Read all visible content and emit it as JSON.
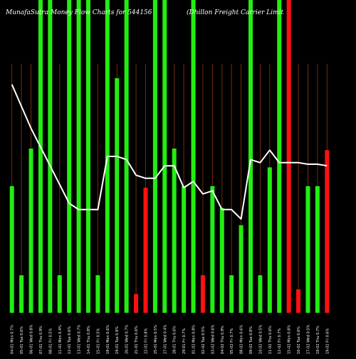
{
  "header": {
    "left_title": "MunafaSutra  Money Flow  Charts for 544156",
    "right_title": "(Dhillon  Freight Carrier Limit"
  },
  "chart_data": {
    "type": "bar",
    "title": "MunafaSutra  Money Flow  Charts for 544156",
    "subtitle": "(Dhillon  Freight Carrier Limit",
    "xlabel": "",
    "ylabel": "",
    "grid": true,
    "legend": "none",
    "colors": {
      "up": "#22ee11",
      "down": "#ff1111",
      "line": "#ffffff",
      "grid": "#7a2a10",
      "background": "#000000",
      "text": "#ffffff"
    },
    "ylim": [
      0,
      100
    ],
    "categories": [
      "04-01 Mon 0.7%",
      "05-01 Tue 0.6%",
      "06-01 Wed 0.8%",
      "07-01 Thu 0.9%",
      "08-01 Fri 0.5%",
      "11-01 Mon 0.4%",
      "12-01 Tue 0.6%",
      "13-01 Wed 0.7%",
      "14-01 Thu 0.8%",
      "15-01 Fri 0.5%",
      "18-01 Mon 0.6%",
      "19-01 Tue 0.9%",
      "20-01 Wed 0.7%",
      "21-01 Thu 0.6%",
      "22-01 Fri 0.8%",
      "25-01 Mon 0.5%",
      "27-01 Wed 0.4%",
      "28-01 Thu 0.6%",
      "29-01 Fri 0.7%",
      "01-02 Mon 0.8%",
      "02-02 Tue 0.5%",
      "03-02 Wed 0.6%",
      "04-02 Thu 0.9%",
      "05-02 Fri 0.7%",
      "08-02 Mon 0.6%",
      "09-02 Tue 0.8%",
      "10-02 Wed 0.5%",
      "11-02 Thu 0.6%",
      "12-02 Fri 0.7%",
      "15-02 Mon 0.8%",
      "16-02 Tue 0.6%",
      "17-02 Wed 0.5%",
      "18-02 Thu 0.7%",
      "19-02 Fri 0.6%"
    ],
    "series": [
      {
        "values": [
          40.5,
          12,
          52.5,
          100,
          100,
          12,
          100,
          100,
          100,
          12,
          100,
          75,
          100,
          6,
          40,
          100,
          100,
          52.5,
          40.5,
          100,
          12,
          40.5,
          33.5,
          12,
          28,
          100,
          12,
          46.5,
          100,
          100,
          7.5,
          40.5,
          40.5,
          52
        ]
      },
      {
        "values": [
          73,
          66,
          59,
          53,
          47,
          41,
          35,
          33,
          33,
          33,
          50,
          50,
          49,
          44,
          43,
          43,
          47,
          47,
          40,
          42,
          38,
          39,
          33,
          33,
          30,
          49,
          48,
          52,
          48,
          48,
          48,
          47.5,
          47.5,
          47
        ]
      }
    ],
    "directions": [
      "up",
      "up",
      "up",
      "up",
      "up",
      "up",
      "up",
      "up",
      "up",
      "up",
      "up",
      "up",
      "up",
      "down",
      "down",
      "up",
      "up",
      "up",
      "up",
      "up",
      "down",
      "up",
      "up",
      "up",
      "up",
      "up",
      "up",
      "up",
      "up",
      "down",
      "down",
      "up",
      "up",
      "down"
    ]
  }
}
